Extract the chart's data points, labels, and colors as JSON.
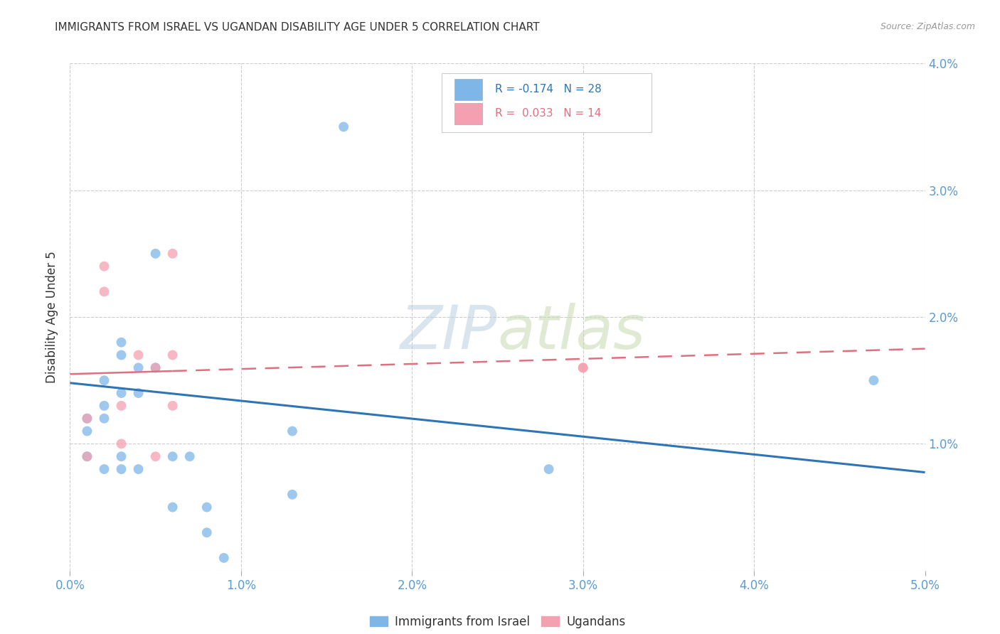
{
  "title": "IMMIGRANTS FROM ISRAEL VS UGANDAN DISABILITY AGE UNDER 5 CORRELATION CHART",
  "source": "Source: ZipAtlas.com",
  "ylabel": "Disability Age Under 5",
  "xlim": [
    0.0,
    0.05
  ],
  "ylim": [
    0.0,
    0.04
  ],
  "xticks": [
    0.0,
    0.01,
    0.02,
    0.03,
    0.04,
    0.05
  ],
  "yticks": [
    0.0,
    0.01,
    0.02,
    0.03,
    0.04
  ],
  "xtick_labels": [
    "0.0%",
    "1.0%",
    "2.0%",
    "3.0%",
    "4.0%",
    "5.0%"
  ],
  "left_ytick_labels": [
    "",
    "",
    "",
    "",
    ""
  ],
  "right_ytick_labels": [
    "",
    "1.0%",
    "2.0%",
    "3.0%",
    "4.0%"
  ],
  "israel_color": "#7EB6E8",
  "uganda_color": "#F4A0B0",
  "israel_line_color": "#2E75B6",
  "uganda_line_color": "#E07080",
  "israel_label": "Immigrants from Israel",
  "uganda_label": "Ugandans",
  "watermark_zip": "ZIP",
  "watermark_atlas": "atlas",
  "israel_scatter_x": [
    0.001,
    0.001,
    0.001,
    0.002,
    0.002,
    0.002,
    0.002,
    0.003,
    0.003,
    0.003,
    0.003,
    0.003,
    0.004,
    0.004,
    0.004,
    0.005,
    0.005,
    0.006,
    0.006,
    0.007,
    0.008,
    0.008,
    0.009,
    0.013,
    0.013,
    0.016,
    0.028,
    0.047
  ],
  "israel_scatter_y": [
    0.012,
    0.011,
    0.009,
    0.015,
    0.013,
    0.012,
    0.008,
    0.018,
    0.017,
    0.014,
    0.009,
    0.008,
    0.016,
    0.014,
    0.008,
    0.025,
    0.016,
    0.009,
    0.005,
    0.009,
    0.005,
    0.003,
    0.001,
    0.011,
    0.006,
    0.035,
    0.008,
    0.015
  ],
  "uganda_scatter_x": [
    0.001,
    0.001,
    0.002,
    0.002,
    0.003,
    0.003,
    0.004,
    0.005,
    0.005,
    0.006,
    0.006,
    0.006,
    0.03,
    0.03
  ],
  "uganda_scatter_y": [
    0.012,
    0.009,
    0.024,
    0.022,
    0.013,
    0.01,
    0.017,
    0.016,
    0.009,
    0.025,
    0.017,
    0.013,
    0.016,
    0.016
  ],
  "israel_line_x": [
    0.0,
    0.05
  ],
  "israel_line_y": [
    0.0148,
    0.00775
  ],
  "uganda_line_x": [
    0.0,
    0.05
  ],
  "uganda_line_y": [
    0.0155,
    0.0175
  ],
  "grid_color": "#cccccc",
  "background_color": "#ffffff",
  "title_color": "#333333",
  "axis_tick_color": "#5b9bd5",
  "scatter_size": 100,
  "scatter_alpha": 0.75
}
